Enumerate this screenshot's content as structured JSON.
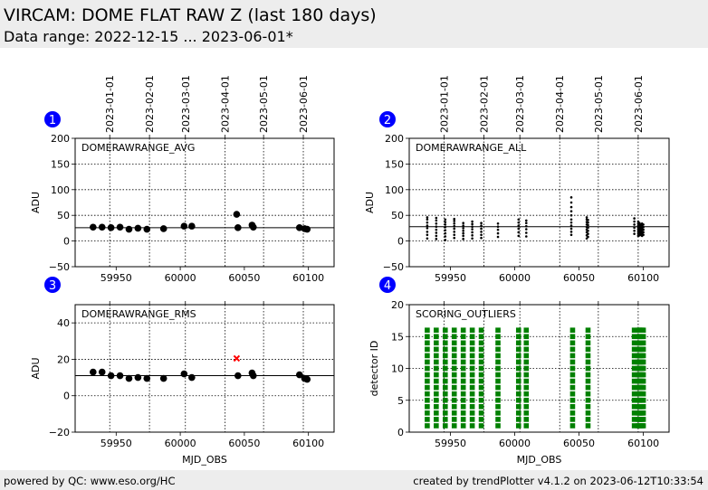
{
  "header": {
    "title": "VIRCAM: DOME FLAT RAW Z (last 180 days)",
    "subtitle": "Data range: 2022-12-15 ... 2023-06-01*"
  },
  "footer": {
    "left": "powered by QC: www.eso.org/HC",
    "right": "created by trendPlotter v4.1.2 on 2023-06-12T10:33:54"
  },
  "colors": {
    "header_bg": "#ededed",
    "marker": "#000000",
    "outlier": "#ff0000",
    "scoring": "#008000",
    "badge": "#0000ff"
  },
  "date_ticks": [
    {
      "label": "2023-01-01",
      "mjd": 59945
    },
    {
      "label": "2023-02-01",
      "mjd": 59976
    },
    {
      "label": "2023-03-01",
      "mjd": 60004
    },
    {
      "label": "2023-04-01",
      "mjd": 60035
    },
    {
      "label": "2023-05-01",
      "mjd": 60065
    },
    {
      "label": "2023-06-01",
      "mjd": 60096
    }
  ],
  "chart_data": [
    {
      "id": "1",
      "type": "scatter",
      "title": "DOMERAWRANGE_AVG",
      "ylabel": "ADU",
      "xlabel": "",
      "xlim": [
        59918,
        60120
      ],
      "ylim": [
        -50,
        200
      ],
      "yticks": [
        -50,
        0,
        50,
        100,
        150,
        200
      ],
      "xticks": [
        59950,
        60000,
        60050,
        60100
      ],
      "show_xtick_labels": true,
      "grid": true,
      "reference_line": 26,
      "points": [
        {
          "x": 59932,
          "y": 27
        },
        {
          "x": 59939,
          "y": 27
        },
        {
          "x": 59946,
          "y": 26
        },
        {
          "x": 59953,
          "y": 27
        },
        {
          "x": 59960,
          "y": 23
        },
        {
          "x": 59967,
          "y": 25
        },
        {
          "x": 59974,
          "y": 23
        },
        {
          "x": 59987,
          "y": 24
        },
        {
          "x": 60003,
          "y": 29
        },
        {
          "x": 60009,
          "y": 29
        },
        {
          "x": 60044,
          "y": 52
        },
        {
          "x": 60045,
          "y": 26
        },
        {
          "x": 60056,
          "y": 31
        },
        {
          "x": 60057,
          "y": 27
        },
        {
          "x": 60093,
          "y": 26
        },
        {
          "x": 60097,
          "y": 24
        },
        {
          "x": 60099,
          "y": 23
        }
      ],
      "outliers": []
    },
    {
      "id": "2",
      "type": "scatter",
      "title": "DOMERAWRANGE_ALL",
      "ylabel": "ADU",
      "xlabel": "",
      "xlim": [
        59918,
        60120
      ],
      "ylim": [
        -50,
        200
      ],
      "yticks": [
        -50,
        0,
        50,
        100,
        150,
        200
      ],
      "xticks": [
        59950,
        60000,
        60050,
        60100
      ],
      "show_xtick_labels": true,
      "grid": true,
      "reference_line": 28,
      "columns": [
        {
          "x": 59932,
          "ys": [
            5,
            12,
            18,
            25,
            30,
            36,
            42,
            46
          ]
        },
        {
          "x": 59939,
          "ys": [
            4,
            10,
            16,
            22,
            28,
            34,
            40,
            45
          ]
        },
        {
          "x": 59946,
          "ys": [
            2,
            9,
            15,
            21,
            27,
            32,
            37,
            42
          ]
        },
        {
          "x": 59953,
          "ys": [
            6,
            12,
            18,
            24,
            29,
            34,
            39,
            43
          ]
        },
        {
          "x": 59960,
          "ys": [
            4,
            10,
            15,
            20,
            25,
            30,
            35
          ]
        },
        {
          "x": 59967,
          "ys": [
            5,
            11,
            17,
            23,
            28,
            33,
            38
          ]
        },
        {
          "x": 59974,
          "ys": [
            6,
            12,
            18,
            24,
            30,
            35
          ]
        },
        {
          "x": 59987,
          "ys": [
            8,
            15,
            22,
            28,
            34
          ]
        },
        {
          "x": 60003,
          "ys": [
            10,
            17,
            24,
            30,
            36,
            42
          ]
        },
        {
          "x": 60009,
          "ys": [
            9,
            16,
            23,
            29,
            35,
            40
          ]
        },
        {
          "x": 60044,
          "ys": [
            12,
            18,
            24,
            30,
            36,
            42,
            50,
            58,
            66,
            75,
            85
          ]
        },
        {
          "x": 60056,
          "ys": [
            5,
            11,
            17,
            22,
            27,
            32,
            37,
            42,
            46
          ]
        },
        {
          "x": 60057,
          "ys": [
            8,
            14,
            20,
            26,
            31,
            36,
            41
          ]
        },
        {
          "x": 60093,
          "ys": [
            14,
            20,
            26,
            32,
            38,
            44
          ]
        },
        {
          "x": 60096,
          "ys": [
            10,
            14,
            18,
            22,
            26,
            30,
            34,
            38
          ]
        },
        {
          "x": 60097,
          "ys": [
            11,
            15,
            19,
            23,
            27,
            31,
            35
          ]
        },
        {
          "x": 60098,
          "ys": [
            12,
            16,
            20,
            24,
            28,
            32
          ]
        },
        {
          "x": 60099,
          "ys": [
            10,
            14,
            18,
            22,
            26,
            30,
            34
          ]
        },
        {
          "x": 60100,
          "ys": [
            12,
            17,
            22,
            27,
            32
          ]
        }
      ],
      "outliers": []
    },
    {
      "id": "3",
      "type": "scatter",
      "title": "DOMERAWRANGE_RMS",
      "ylabel": "ADU",
      "xlabel": "MJD_OBS",
      "xlim": [
        59918,
        60120
      ],
      "ylim": [
        -20,
        50
      ],
      "yticks": [
        -20,
        0,
        20,
        40
      ],
      "xticks": [
        59950,
        60000,
        60050,
        60100
      ],
      "show_xtick_labels": true,
      "grid": true,
      "reference_line": 11,
      "points": [
        {
          "x": 59932,
          "y": 13
        },
        {
          "x": 59939,
          "y": 13
        },
        {
          "x": 59946,
          "y": 11
        },
        {
          "x": 59953,
          "y": 11
        },
        {
          "x": 59960,
          "y": 9.5
        },
        {
          "x": 59967,
          "y": 10
        },
        {
          "x": 59974,
          "y": 9.5
        },
        {
          "x": 59987,
          "y": 9.5
        },
        {
          "x": 60003,
          "y": 12
        },
        {
          "x": 60009,
          "y": 10
        },
        {
          "x": 60045,
          "y": 11
        },
        {
          "x": 60056,
          "y": 12.5
        },
        {
          "x": 60057,
          "y": 11
        },
        {
          "x": 60093,
          "y": 11.5
        },
        {
          "x": 60097,
          "y": 9.5
        },
        {
          "x": 60099,
          "y": 9
        }
      ],
      "outliers": [
        {
          "x": 60044,
          "y": 20.5
        }
      ]
    },
    {
      "id": "4",
      "type": "scatter",
      "title": "SCORING_OUTLIERS",
      "ylabel": "detector ID",
      "xlabel": "MJD_OBS",
      "xlim": [
        59918,
        60120
      ],
      "ylim": [
        0,
        20
      ],
      "yticks": [
        0,
        5,
        10,
        15,
        20
      ],
      "xticks": [
        59950,
        60000,
        60050,
        60100
      ],
      "show_xtick_labels": true,
      "grid": true,
      "detector_ids": [
        1,
        16
      ],
      "columns_x": [
        59932,
        59939,
        59946,
        59953,
        59960,
        59967,
        59974,
        59987,
        60003,
        60009,
        60045,
        60057,
        60093,
        60096,
        60097,
        60098,
        60099,
        60100
      ]
    }
  ]
}
